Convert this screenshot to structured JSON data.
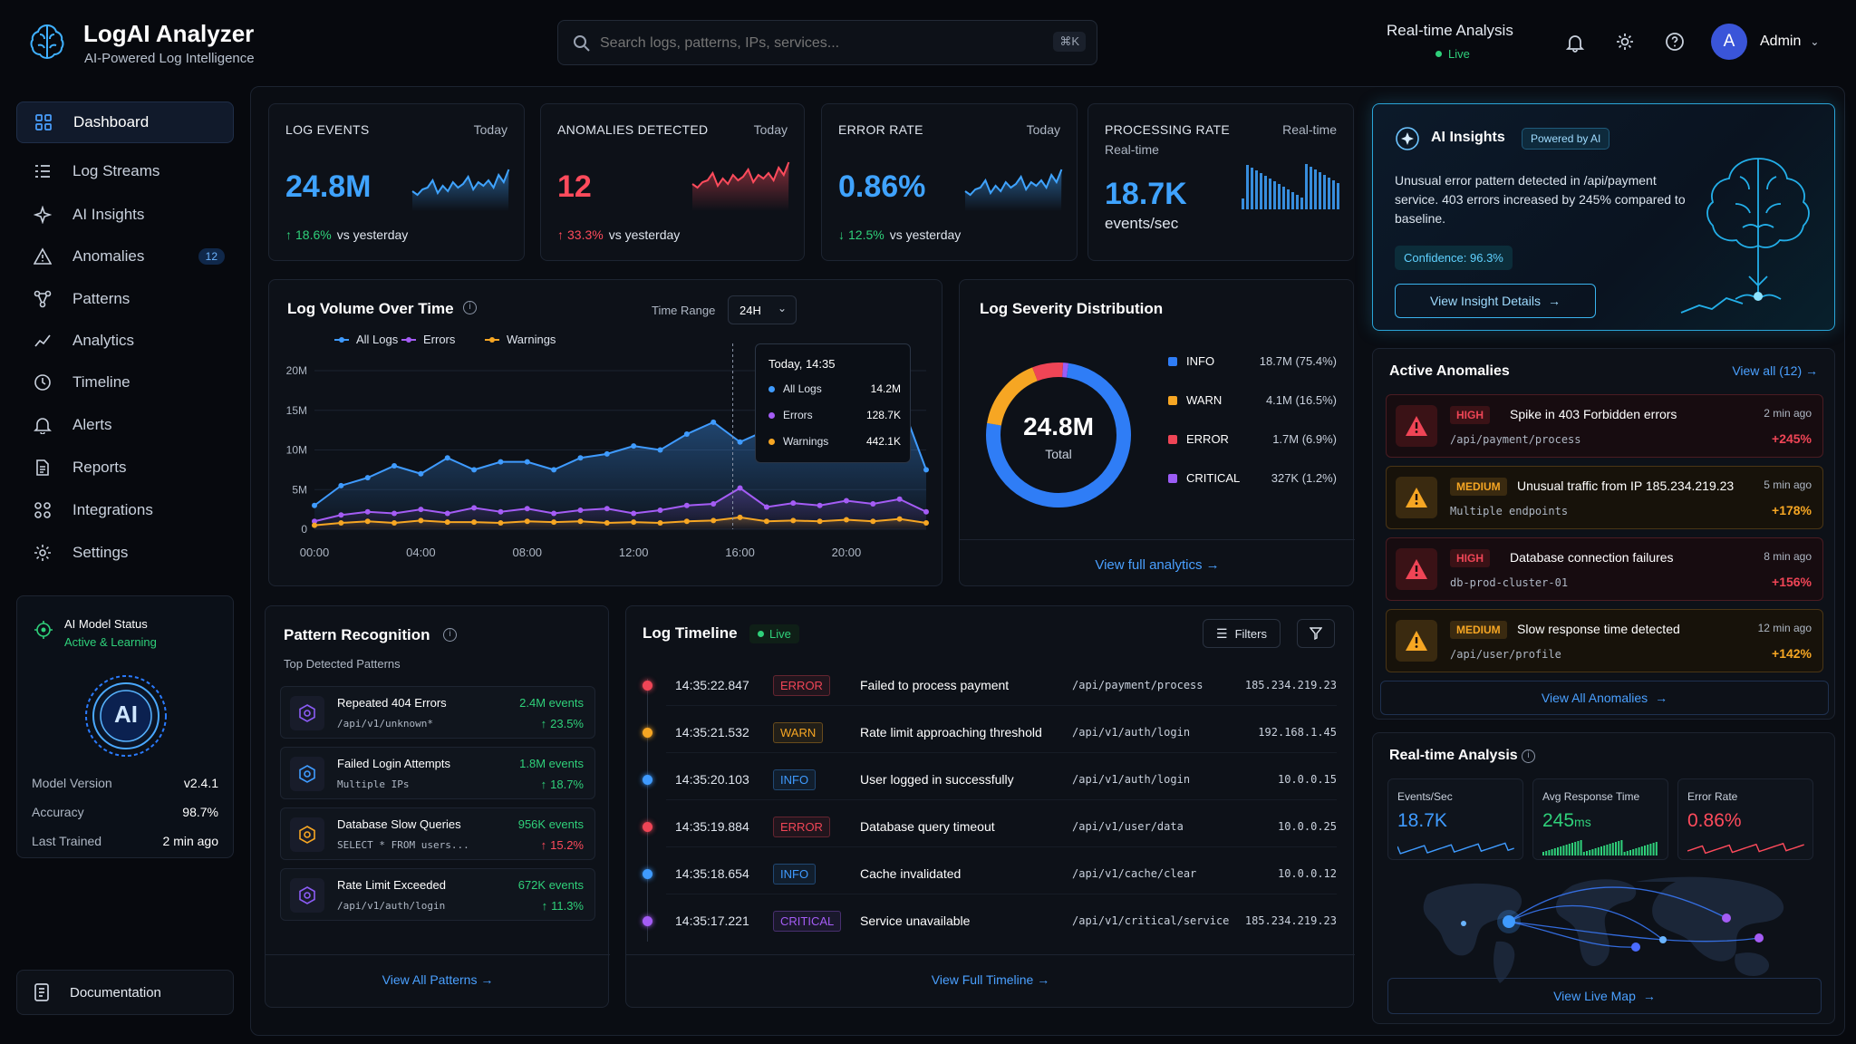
{
  "brand": {
    "name": "LogAI Analyzer",
    "tagline": "AI-Powered Log Intelligence"
  },
  "search": {
    "placeholder": "Search logs, patterns, IPs, services...",
    "shortcut": "⌘K"
  },
  "header": {
    "rt_title": "Real-time Analysis",
    "rt_status": "Live",
    "user_initial": "A",
    "user_name": "Admin"
  },
  "sidebar": {
    "items": [
      {
        "label": "Dashboard",
        "icon": "grid-icon"
      },
      {
        "label": "Log Streams",
        "icon": "list-icon"
      },
      {
        "label": "AI Insights",
        "icon": "sparkle-icon"
      },
      {
        "label": "Anomalies",
        "icon": "warning-icon",
        "badge": "12"
      },
      {
        "label": "Patterns",
        "icon": "pattern-icon"
      },
      {
        "label": "Analytics",
        "icon": "analytics-icon"
      },
      {
        "label": "Timeline",
        "icon": "clock-icon"
      },
      {
        "label": "Alerts",
        "icon": "bell-icon"
      },
      {
        "label": "Reports",
        "icon": "document-icon"
      },
      {
        "label": "Integrations",
        "icon": "integrations-icon"
      },
      {
        "label": "Settings",
        "icon": "gear-icon"
      }
    ],
    "model": {
      "title": "AI Model Status",
      "status": "Active & Learning",
      "emblem": "AI",
      "version_label": "Model Version",
      "version": "v2.4.1",
      "accuracy_label": "Accuracy",
      "accuracy": "98.7%",
      "trained_label": "Last Trained",
      "trained": "2 min ago"
    },
    "docs": "Documentation"
  },
  "kpis": [
    {
      "title": "LOG EVENTS",
      "period": "Today",
      "value": "24.8M",
      "change": "18.6%",
      "change_suffix": "vs yesterday",
      "color": "#3fa3ff",
      "dir": "up"
    },
    {
      "title": "ANOMALIES DETECTED",
      "period": "Today",
      "value": "12",
      "change": "33.3%",
      "change_suffix": "vs yesterday",
      "color": "#ff4b5c",
      "dir": "up"
    },
    {
      "title": "ERROR RATE",
      "period": "Today",
      "value": "0.86%",
      "change": "12.5%",
      "change_suffix": "vs yesterday",
      "color": "#3fa3ff",
      "dir": "down"
    },
    {
      "title": "PROCESSING RATE",
      "subtitle": "Real-time",
      "period": "Real-time",
      "value": "18.7K",
      "unit": "events/sec",
      "color": "#3fa3ff"
    }
  ],
  "volume": {
    "title": "Log Volume Over Time",
    "range_label": "Time Range",
    "range_value": "24H",
    "tooltip": {
      "time": "Today, 14:35",
      "rows": [
        {
          "name": "All Logs",
          "value": "14.2M",
          "color": "#3f9bff"
        },
        {
          "name": "Errors",
          "value": "128.7K",
          "color": "#a45cf5"
        },
        {
          "name": "Warnings",
          "value": "442.1K",
          "color": "#f6a623"
        }
      ]
    }
  },
  "chart_data": {
    "type": "area",
    "x": [
      "00:00",
      "01:00",
      "02:00",
      "03:00",
      "04:00",
      "05:00",
      "06:00",
      "07:00",
      "08:00",
      "09:00",
      "10:00",
      "11:00",
      "12:00",
      "13:00",
      "14:00",
      "15:00",
      "16:00",
      "17:00",
      "18:00",
      "19:00",
      "20:00",
      "21:00",
      "22:00",
      "23:00"
    ],
    "xticks": [
      "00:00",
      "04:00",
      "08:00",
      "12:00",
      "16:00",
      "20:00"
    ],
    "yticks": [
      "0",
      "5M",
      "10M",
      "15M",
      "20M"
    ],
    "ylim": [
      0,
      20
    ],
    "series": [
      {
        "name": "All Logs",
        "color": "#3f9bff",
        "values": [
          3,
          5.5,
          6.5,
          8,
          7,
          9,
          7.5,
          8.5,
          8.5,
          7.5,
          9,
          9.5,
          10.5,
          10,
          12,
          13.5,
          11,
          12.5,
          16.5,
          14.5,
          14,
          15.5,
          16.5,
          7.5
        ]
      },
      {
        "name": "Errors",
        "color": "#a45cf5",
        "values": [
          1,
          1.8,
          2.2,
          2,
          2.5,
          2,
          2.7,
          2.2,
          2.6,
          2,
          2.4,
          2.6,
          2,
          2.4,
          3,
          3.2,
          5.2,
          2.8,
          3.3,
          3,
          3.6,
          3.2,
          3.8,
          2.2
        ]
      },
      {
        "name": "Warnings",
        "color": "#f6a623",
        "values": [
          0.5,
          0.8,
          1,
          0.8,
          1.1,
          0.9,
          0.9,
          0.8,
          1,
          0.9,
          1,
          0.8,
          0.9,
          0.8,
          1,
          1.1,
          1.5,
          1,
          1.1,
          1,
          1.2,
          1,
          1.3,
          0.8
        ]
      }
    ]
  },
  "severity": {
    "title": "Log Severity Distribution",
    "total": "24.8M",
    "total_label": "Total",
    "rows": [
      {
        "name": "INFO",
        "value": "18.7M (75.4%)",
        "pct": 75.4,
        "color": "#2f7df6"
      },
      {
        "name": "WARN",
        "value": "4.1M (16.5%)",
        "pct": 16.5,
        "color": "#f6a623"
      },
      {
        "name": "ERROR",
        "value": "1.7M (6.9%)",
        "pct": 6.9,
        "color": "#ef4556"
      },
      {
        "name": "CRITICAL",
        "value": "327K (1.2%)",
        "pct": 1.2,
        "color": "#9b5cf5"
      }
    ],
    "link": "View full analytics"
  },
  "insights": {
    "title": "AI Insights",
    "badge": "Powered by AI",
    "body": "Unusual error pattern detected in /api/payment service. 403 errors increased by 245% compared to baseline.",
    "confidence": "Confidence: 96.3%",
    "button": "View Insight Details"
  },
  "anomalies": {
    "title": "Active Anomalies",
    "view_all": "View all (12)",
    "items": [
      {
        "sev": "HIGH",
        "title": "Spike in 403 Forbidden errors",
        "sub": "/api/payment/process",
        "time": "2 min ago",
        "change": "+245%",
        "color": "#ef4556"
      },
      {
        "sev": "MEDIUM",
        "title": "Unusual traffic from IP 185.234.219.23",
        "sub": "Multiple endpoints",
        "time": "5 min ago",
        "change": "+178%",
        "color": "#f6a623"
      },
      {
        "sev": "HIGH",
        "title": "Database connection failures",
        "sub": "db-prod-cluster-01",
        "time": "8 min ago",
        "change": "+156%",
        "color": "#ef4556"
      },
      {
        "sev": "MEDIUM",
        "title": "Slow response time detected",
        "sub": "/api/user/profile",
        "time": "12 min ago",
        "change": "+142%",
        "color": "#f6a623"
      }
    ],
    "footer": "View All Anomalies"
  },
  "patterns": {
    "title": "Pattern Recognition",
    "subtitle": "Top Detected Patterns",
    "items": [
      {
        "name": "Repeated 404 Errors",
        "sub": "/api/v1/unknown*",
        "count": "2.4M events",
        "change": "23.5%",
        "dir": "up",
        "color": "#8b5cf6"
      },
      {
        "name": "Failed Login Attempts",
        "sub": "Multiple IPs",
        "count": "1.8M events",
        "change": "18.7%",
        "dir": "up",
        "color": "#3f9bff"
      },
      {
        "name": "Database Slow Queries",
        "sub": "SELECT * FROM users...",
        "count": "956K events",
        "change": "15.2%",
        "dir": "up",
        "color": "#f6a623"
      },
      {
        "name": "Rate Limit Exceeded",
        "sub": "/api/v1/auth/login",
        "count": "672K events",
        "change": "11.3%",
        "dir": "up",
        "color": "#8b5cf6"
      }
    ],
    "footer": "View All Patterns"
  },
  "timeline": {
    "title": "Log Timeline",
    "live": "Live",
    "filters": "Filters",
    "rows": [
      {
        "time": "14:35:22.847",
        "level": "ERROR",
        "msg": "Failed to process payment",
        "path": "/api/payment/process",
        "ip": "185.234.219.23",
        "color": "#ef4556"
      },
      {
        "time": "14:35:21.532",
        "level": "WARN",
        "msg": "Rate limit approaching threshold",
        "path": "/api/v1/auth/login",
        "ip": "192.168.1.45",
        "color": "#f6a623"
      },
      {
        "time": "14:35:20.103",
        "level": "INFO",
        "msg": "User logged in successfully",
        "path": "/api/v1/auth/login",
        "ip": "10.0.0.15",
        "color": "#3f9bff"
      },
      {
        "time": "14:35:19.884",
        "level": "ERROR",
        "msg": "Database query timeout",
        "path": "/api/v1/user/data",
        "ip": "10.0.0.25",
        "color": "#ef4556"
      },
      {
        "time": "14:35:18.654",
        "level": "INFO",
        "msg": "Cache invalidated",
        "path": "/api/v1/cache/clear",
        "ip": "10.0.0.12",
        "color": "#3f9bff"
      },
      {
        "time": "14:35:17.221",
        "level": "CRITICAL",
        "msg": "Service unavailable",
        "path": "/api/v1/critical/service",
        "ip": "185.234.219.23",
        "color": "#a45cf5"
      }
    ],
    "footer": "View Full Timeline"
  },
  "realtime": {
    "title": "Real-time Analysis",
    "stats": [
      {
        "label": "Events/Sec",
        "value": "18.7K",
        "unit": "",
        "color": "#3f9bff"
      },
      {
        "label": "Avg Response Time",
        "value": "245",
        "unit": "ms",
        "color": "#2fd07a"
      },
      {
        "label": "Error Rate",
        "value": "0.86%",
        "unit": "",
        "color": "#ff4b5c"
      }
    ],
    "map_button": "View Live Map"
  }
}
